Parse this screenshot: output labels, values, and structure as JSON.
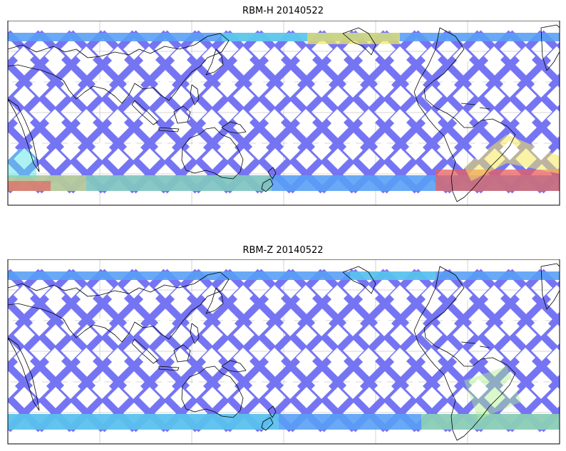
{
  "figure": {
    "panels": [
      {
        "title": "RBM-H 20140522",
        "variable": "RBM-H",
        "date": "20140522",
        "hot_regions": "southern-hemisphere high latitudes, strongest over South Atlantic / South America"
      },
      {
        "title": "RBM-Z 20140522",
        "variable": "RBM-Z",
        "date": "20140522",
        "hot_regions": "weak cyan/green near southern high latitudes and east of South America"
      }
    ],
    "colormap": "jet",
    "colors": {
      "low": "#6a6af2",
      "mid_low": "#5aa0f5",
      "mid": "#5ce6e6",
      "mid_high": "#aef08a",
      "high": "#f5e85a",
      "max": "#e86060",
      "coastline": "#000000",
      "grid": "#c8c8c8"
    },
    "projection": "equirectangular, centered on the Pacific",
    "grid": true
  }
}
